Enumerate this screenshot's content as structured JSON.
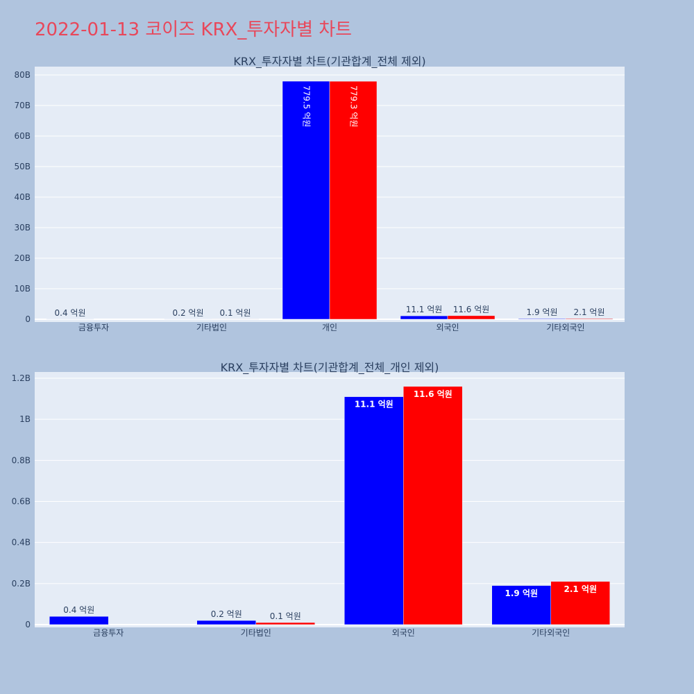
{
  "title": "2022-01-13 코이즈 KRX_투자자별 차트",
  "colors": {
    "sell": "#0000ff",
    "buy": "#ff0000",
    "title": "#e8475a",
    "background": "#b0c4de",
    "plot": "#e5ecf6"
  },
  "chart_data": [
    {
      "type": "bar",
      "title": "KRX_투자자별 차트(기관합계_전체 제외)",
      "categories": [
        "금융투자",
        "기타법인",
        "개인",
        "외국인",
        "기타외국인"
      ],
      "ylim": [
        0,
        80
      ],
      "yticks": [
        0,
        10,
        20,
        30,
        40,
        50,
        60,
        70,
        80
      ],
      "ytick_labels": [
        "0",
        "10B",
        "20B",
        "30B",
        "40B",
        "50B",
        "60B",
        "70B",
        "80B"
      ],
      "series": [
        {
          "values": [
            0.04,
            0.02,
            77.95,
            1.11,
            0.19
          ],
          "labels": [
            "0.4 억원",
            "0.2 억원",
            "779.5 억원",
            "11.1 억원",
            "1.9 억원"
          ],
          "color": "#0000ff"
        },
        {
          "values": [
            0,
            0.01,
            77.93,
            1.16,
            0.21
          ],
          "labels": [
            "",
            "0.1 억원",
            "779.3 억원",
            "11.6 억원",
            "2.1 억원"
          ],
          "color": "#ff0000"
        }
      ],
      "grid": true
    },
    {
      "type": "bar",
      "title": "KRX_투자자별 차트(기관합계_전체_개인 제외)",
      "categories": [
        "금융투자",
        "기타법인",
        "외국인",
        "기타외국인"
      ],
      "ylim": [
        0,
        1.2
      ],
      "yticks": [
        0,
        0.2,
        0.4,
        0.6,
        0.8,
        1.0,
        1.2
      ],
      "ytick_labels": [
        "0",
        "0.2B",
        "0.4B",
        "0.6B",
        "0.8B",
        "1B",
        "1.2B"
      ],
      "series": [
        {
          "values": [
            0.04,
            0.02,
            1.11,
            0.19
          ],
          "labels": [
            "0.4 억원",
            "0.2 억원",
            "11.1 억원",
            "1.9 억원"
          ],
          "color": "#0000ff"
        },
        {
          "values": [
            0,
            0.01,
            1.16,
            0.21
          ],
          "labels": [
            "",
            "0.1 억원",
            "11.6 억원",
            "2.1 억원"
          ],
          "color": "#ff0000"
        }
      ],
      "grid": true
    }
  ]
}
